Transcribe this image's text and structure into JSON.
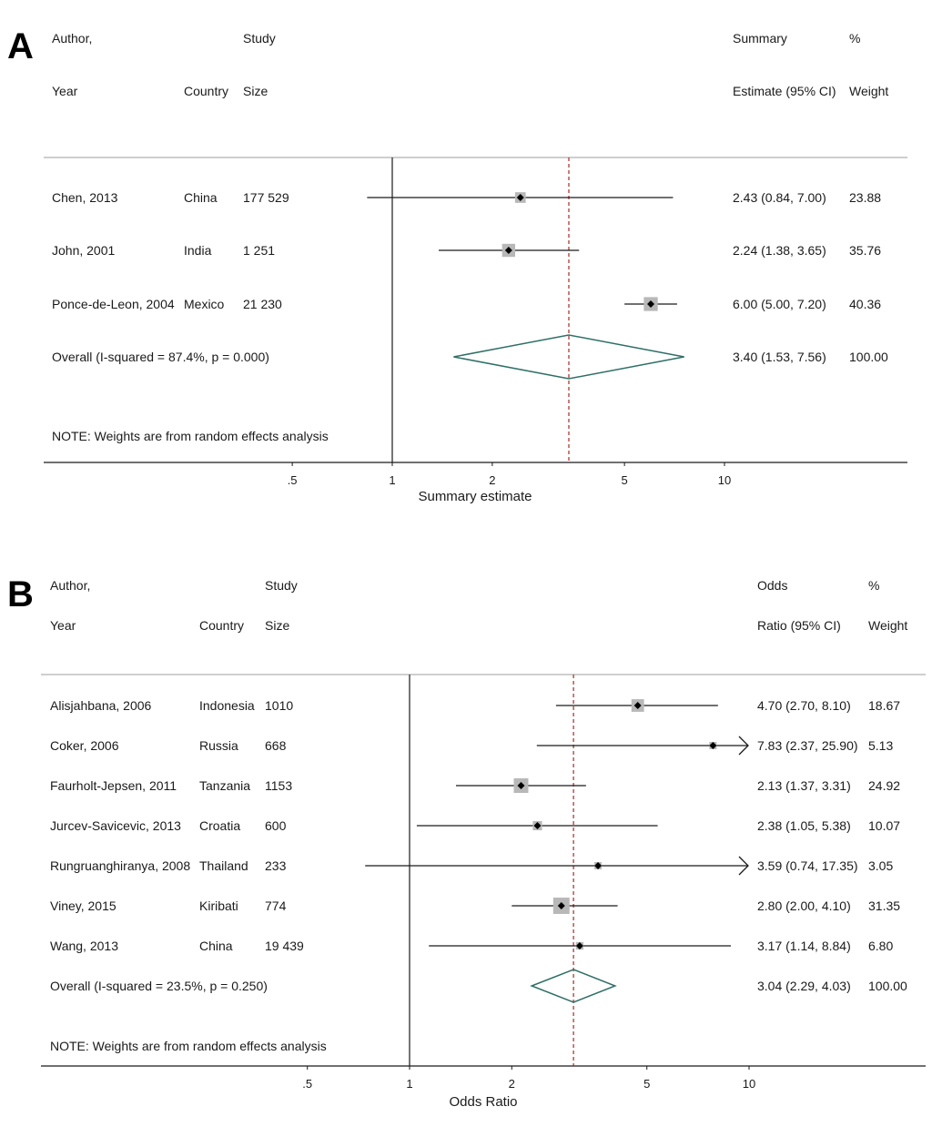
{
  "chart_data": [
    {
      "type": "forest",
      "panel_label": "A",
      "headers": {
        "author_1": "Author,",
        "author_2": "Year",
        "country": "Country",
        "size_1": "Study",
        "size_2": "Size",
        "estimate_1": "Summary",
        "estimate_2": "Estimate (95% CI)",
        "weight_1": "%",
        "weight_2": "Weight"
      },
      "studies": [
        {
          "author": "Chen, 2013",
          "country": "China",
          "size": "177 529",
          "estimate": 2.43,
          "lower": 0.84,
          "upper": 7.0,
          "ci_text": "2.43 (0.84, 7.00)",
          "weight": 23.88,
          "weight_text": "23.88"
        },
        {
          "author": "John, 2001",
          "country": "India",
          "size": "1 251",
          "estimate": 2.24,
          "lower": 1.38,
          "upper": 3.65,
          "ci_text": "2.24 (1.38, 3.65)",
          "weight": 35.76,
          "weight_text": "35.76"
        },
        {
          "author": "Ponce-de-Leon, 2004",
          "country": "Mexico",
          "size": "21 230",
          "estimate": 6.0,
          "lower": 5.0,
          "upper": 7.2,
          "ci_text": "6.00 (5.00, 7.20)",
          "weight": 40.36,
          "weight_text": "40.36"
        }
      ],
      "overall": {
        "label": "Overall  (I-squared = 87.4%, p = 0.000)",
        "estimate": 3.4,
        "lower": 1.53,
        "upper": 7.56,
        "ci_text": "3.40 (1.53, 7.56)",
        "weight_text": "100.00"
      },
      "note": "NOTE: Weights are from random effects analysis",
      "x_ticks": [
        0.5,
        1,
        2,
        5,
        10
      ],
      "x_tick_labels": [
        ".5",
        "1",
        "2",
        "5",
        "10"
      ],
      "xlabel": "Summary estimate",
      "x_scale": "log",
      "reference_line": 1
    },
    {
      "type": "forest",
      "panel_label": "B",
      "headers": {
        "author_1": "Author,",
        "author_2": "Year",
        "country": "Country",
        "size_1": "Study",
        "size_2": "Size",
        "estimate_1": "Odds",
        "estimate_2": "Ratio (95% CI)",
        "weight_1": "%",
        "weight_2": "Weight"
      },
      "studies": [
        {
          "author": "Alisjahbana, 2006",
          "country": "Indonesia",
          "size": "1010",
          "estimate": 4.7,
          "lower": 2.7,
          "upper": 8.1,
          "ci_text": "4.70 (2.70, 8.10)",
          "weight": 18.67,
          "weight_text": "18.67"
        },
        {
          "author": "Coker, 2006",
          "country": "Russia",
          "size": "668",
          "estimate": 7.83,
          "lower": 2.37,
          "upper": 25.9,
          "ci_text": "7.83 (2.37, 25.90)",
          "weight": 5.13,
          "weight_text": "5.13"
        },
        {
          "author": "Faurholt-Jepsen, 2011",
          "country": "Tanzania",
          "size": "1153",
          "estimate": 2.13,
          "lower": 1.37,
          "upper": 3.31,
          "ci_text": "2.13 (1.37, 3.31)",
          "weight": 24.92,
          "weight_text": "24.92"
        },
        {
          "author": "Jurcev-Savicevic, 2013",
          "country": "Croatia",
          "size": "600",
          "estimate": 2.38,
          "lower": 1.05,
          "upper": 5.38,
          "ci_text": "2.38 (1.05, 5.38)",
          "weight": 10.07,
          "weight_text": "10.07"
        },
        {
          "author": "Rungruanghiranya, 2008",
          "country": "Thailand",
          "size": "233",
          "estimate": 3.59,
          "lower": 0.74,
          "upper": 17.35,
          "ci_text": "3.59 (0.74, 17.35)",
          "weight": 3.05,
          "weight_text": "3.05"
        },
        {
          "author": "Viney, 2015",
          "country": "Kiribati",
          "size": "774",
          "estimate": 2.8,
          "lower": 2.0,
          "upper": 4.1,
          "ci_text": "2.80 (2.00, 4.10)",
          "weight": 31.35,
          "weight_text": "31.35"
        },
        {
          "author": "Wang, 2013",
          "country": "China",
          "size": "19 439",
          "estimate": 3.17,
          "lower": 1.14,
          "upper": 8.84,
          "ci_text": "3.17 (1.14, 8.84)",
          "weight": 6.8,
          "weight_text": "6.80"
        }
      ],
      "overall": {
        "label": "Overall  (I-squared = 23.5%, p = 0.250)",
        "estimate": 3.04,
        "lower": 2.29,
        "upper": 4.03,
        "ci_text": "3.04 (2.29, 4.03)",
        "weight_text": "100.00"
      },
      "note": "NOTE: Weights are from random effects analysis",
      "x_ticks": [
        0.5,
        1,
        2,
        5,
        10
      ],
      "x_tick_labels": [
        ".5",
        "1",
        "2",
        "5",
        "10"
      ],
      "xlabel": "Odds Ratio",
      "x_scale": "log",
      "reference_line": 1
    }
  ],
  "colors": {
    "line": "#1a1a1a",
    "box": "#b8b8b8",
    "diamond": "#2f6f66",
    "dashed": "#a52a2a",
    "rule": "#bdbdbd"
  }
}
